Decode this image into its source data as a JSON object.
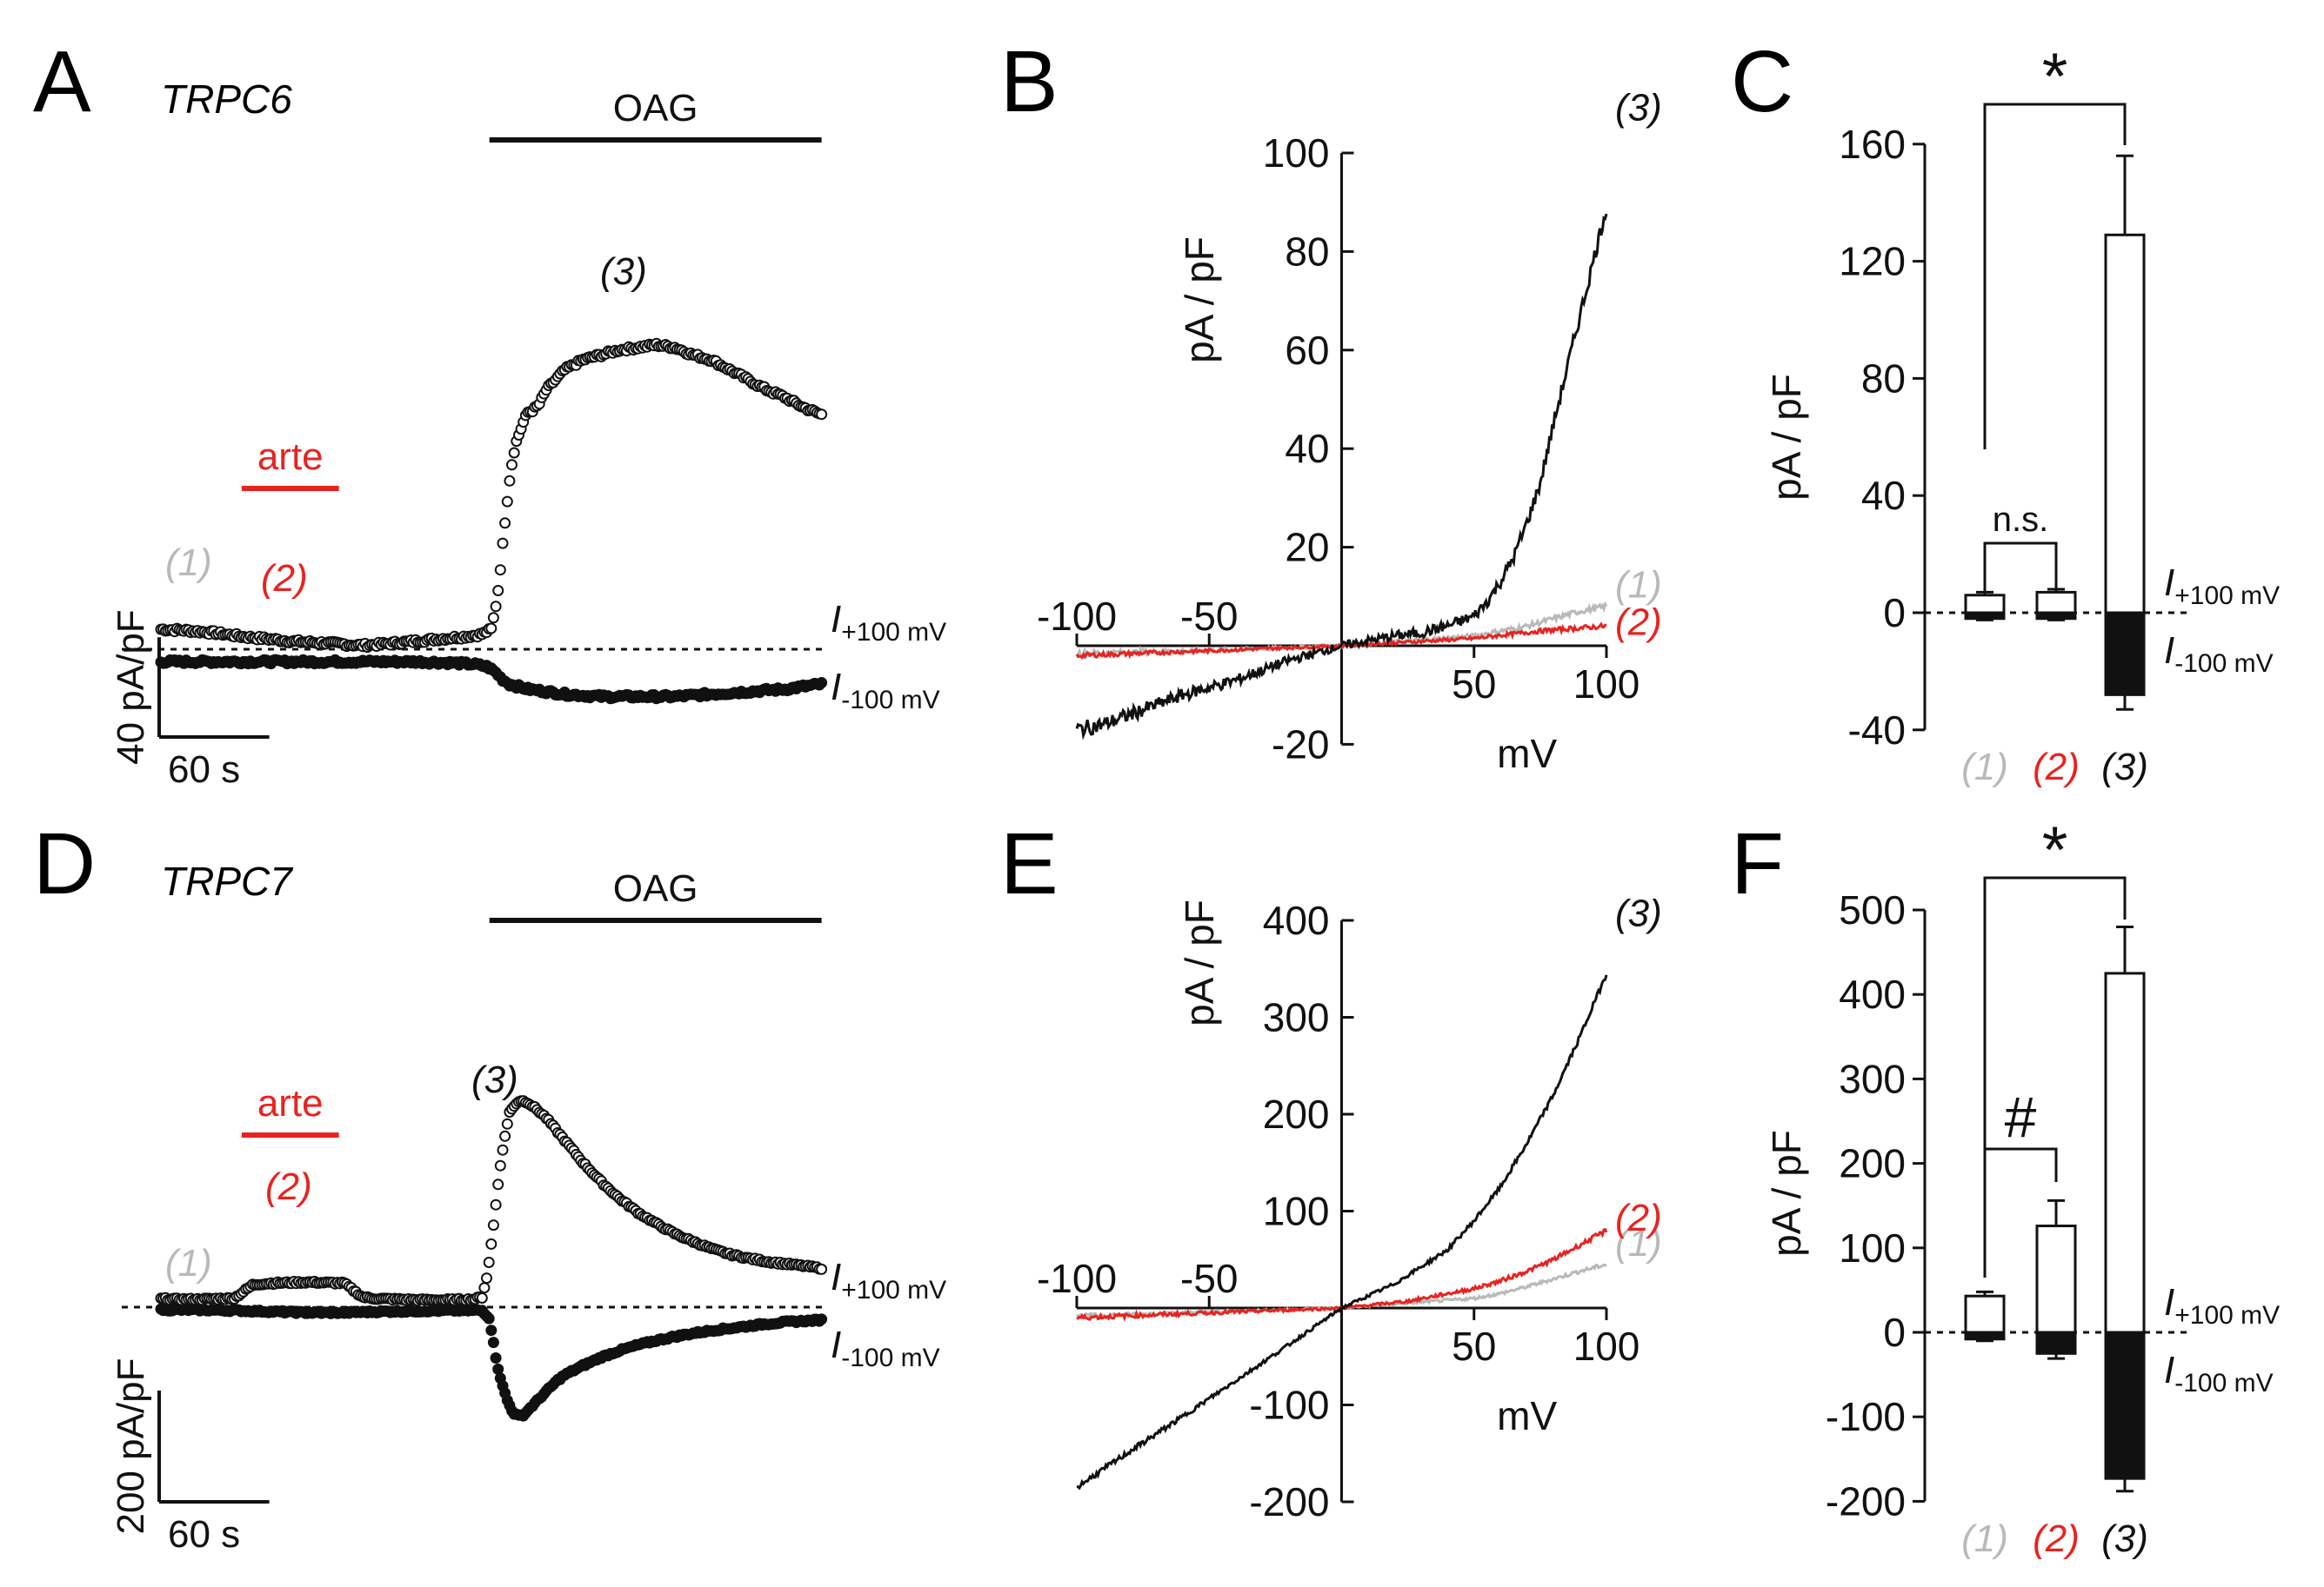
{
  "figure": {
    "colors": {
      "black": "#111111",
      "red": "#e8231f",
      "grey": "#b9b9b9"
    },
    "condition_labels": [
      "(1)",
      "(2)",
      "(3)"
    ]
  },
  "chart_data": [
    {
      "panel": "A",
      "type": "line",
      "title": "TRPC6",
      "treatments": [
        {
          "label": "OAG",
          "color": "#111111",
          "t_start": 179,
          "t_end": 360
        },
        {
          "label": "arte",
          "color": "#e8231f",
          "t_start": 44,
          "t_end": 97
        }
      ],
      "scale_bar": {
        "y_label": "40 pA/pF",
        "x_label": "60 s",
        "y_value": 40,
        "x_value": 60
      },
      "series": [
        {
          "name": "I+100 mV",
          "label_main": "I",
          "label_sub": "+100 mV",
          "marker": "open-circle",
          "color": "#111111",
          "t": [
            0,
            15,
            30,
            45,
            60,
            75,
            90,
            100,
            110,
            120,
            135,
            150,
            165,
            175,
            180,
            182,
            184,
            186,
            188,
            190,
            192,
            194,
            196,
            198,
            200,
            203,
            206,
            210,
            215,
            220,
            230,
            240,
            250,
            260,
            270,
            280,
            290,
            300,
            310,
            320,
            330,
            340,
            350,
            360
          ],
          "y": [
            8,
            7.5,
            6.5,
            5,
            4,
            3,
            2.5,
            2,
            1.5,
            2,
            3,
            4,
            5,
            6,
            8,
            15,
            25,
            40,
            55,
            68,
            78,
            84,
            88,
            92,
            95,
            96,
            98,
            104,
            108,
            112,
            116,
            118,
            120,
            121,
            122,
            121,
            118,
            116,
            112,
            108,
            104,
            101,
            97,
            94
          ]
        },
        {
          "name": "I-100 mV",
          "label_main": "I",
          "label_sub": "-100 mV",
          "marker": "filled-circle",
          "color": "#111111",
          "t": [
            0,
            20,
            40,
            60,
            80,
            100,
            120,
            140,
            160,
            170,
            178,
            182,
            186,
            190,
            195,
            200,
            210,
            220,
            230,
            240,
            250,
            260,
            270,
            280,
            290,
            300,
            310,
            320,
            330,
            340,
            350,
            360
          ],
          "y": [
            -5,
            -5,
            -5,
            -5,
            -5,
            -5,
            -5,
            -5,
            -5.5,
            -6,
            -7,
            -9,
            -12,
            -14,
            -15,
            -16,
            -17,
            -18,
            -18.5,
            -19,
            -19,
            -19,
            -19,
            -19,
            -18.5,
            -18,
            -17.5,
            -17,
            -16.5,
            -16,
            -15,
            -14
          ]
        }
      ],
      "annotations": [
        {
          "text": "(1)",
          "color": "#b9b9b9"
        },
        {
          "text": "(2)",
          "color": "#e8231f"
        },
        {
          "text": "(3)",
          "color": "#111111"
        }
      ]
    },
    {
      "panel": "B",
      "type": "line",
      "ylabel": "pA / pF",
      "xlabel": "mV",
      "xlim": [
        -100,
        100
      ],
      "ylim": [
        -20,
        100
      ],
      "x_ticks": [
        -100,
        -50,
        50,
        100
      ],
      "y_ticks": [
        -20,
        20,
        40,
        60,
        80,
        100
      ],
      "series": [
        {
          "name": "(1)",
          "color": "#b9b9b9",
          "x": [
            -100,
            -50,
            0,
            25,
            50,
            60,
            70,
            80,
            90,
            100
          ],
          "y": [
            -1.5,
            -1,
            0,
            1,
            2,
            3,
            4,
            5.5,
            7,
            8
          ]
        },
        {
          "name": "(2)",
          "color": "#e8231f",
          "x": [
            -100,
            -50,
            0,
            50,
            75,
            100
          ],
          "y": [
            -2,
            -1,
            0,
            1.5,
            3,
            4
          ]
        },
        {
          "name": "(3)",
          "color": "#111111",
          "x": [
            -100,
            -90,
            -80,
            -70,
            -60,
            -50,
            -40,
            -30,
            -20,
            -10,
            0,
            10,
            20,
            30,
            40,
            50,
            55,
            60,
            65,
            70,
            75,
            80,
            85,
            90,
            95,
            100
          ],
          "y": [
            -17,
            -16,
            -14,
            -12,
            -10,
            -8.5,
            -7,
            -5,
            -3,
            -1.5,
            0,
            1,
            2,
            2.6,
            4,
            6,
            9,
            13,
            18,
            25,
            33,
            45,
            56,
            67,
            78,
            89
          ]
        }
      ]
    },
    {
      "panel": "C",
      "type": "bar",
      "ylabel": "pA / pF",
      "ylim": [
        -40,
        160
      ],
      "y_ticks": [
        -40,
        0,
        40,
        80,
        120,
        160
      ],
      "categories": [
        "(1)",
        "(2)",
        "(3)"
      ],
      "category_colors": [
        "#b9b9b9",
        "#e8231f",
        "#111111"
      ],
      "series": [
        {
          "name": "I+100 mV",
          "label_main": "I",
          "label_sub": "+100 mV",
          "fill": "white",
          "values": [
            6,
            7,
            129
          ],
          "errors": [
            1,
            1,
            27
          ]
        },
        {
          "name": "I-100 mV",
          "label_main": "I",
          "label_sub": "-100 mV",
          "fill": "black",
          "values": [
            -2,
            -2,
            -28
          ],
          "errors": [
            0.5,
            0.5,
            5
          ]
        }
      ],
      "significance": [
        {
          "between": [
            "(1)",
            "(3)"
          ],
          "label": "*"
        },
        {
          "between": [
            "(1)",
            "(2)"
          ],
          "label": "n.s."
        }
      ]
    },
    {
      "panel": "D",
      "type": "line",
      "title": "TRPC7",
      "treatments": [
        {
          "label": "OAG",
          "color": "#111111",
          "t_start": 179,
          "t_end": 360
        },
        {
          "label": "arte",
          "color": "#e8231f",
          "t_start": 44,
          "t_end": 97
        }
      ],
      "scale_bar": {
        "y_label": "200 pA/pF",
        "x_label": "60 s",
        "y_value": 200,
        "x_value": 60
      },
      "series": [
        {
          "name": "I+100 mV",
          "label_main": "I",
          "label_sub": "+100 mV",
          "marker": "open-circle",
          "color": "#111111",
          "t": [
            0,
            10,
            20,
            30,
            40,
            45,
            50,
            55,
            60,
            70,
            80,
            90,
            100,
            105,
            110,
            115,
            120,
            130,
            140,
            150,
            160,
            170,
            175,
            178,
            181,
            184,
            187,
            190,
            193,
            196,
            200,
            205,
            210,
            220,
            230,
            240,
            250,
            260,
            270,
            280,
            290,
            300,
            310,
            320,
            330,
            340,
            350,
            360
          ],
          "y": [
            15,
            14,
            14,
            15,
            16,
            28,
            40,
            42,
            43,
            44,
            45,
            44,
            43,
            30,
            18,
            16,
            15,
            14,
            13,
            13,
            13,
            14,
            18,
            60,
            140,
            230,
            300,
            350,
            365,
            372,
            368,
            355,
            340,
            300,
            260,
            225,
            195,
            170,
            150,
            132,
            118,
            105,
            95,
            88,
            82,
            78,
            74,
            70
          ]
        },
        {
          "name": "I-100 mV",
          "label_main": "I",
          "label_sub": "-100 mV",
          "marker": "filled-circle",
          "color": "#111111",
          "t": [
            0,
            20,
            40,
            60,
            80,
            100,
            120,
            140,
            160,
            175,
            179,
            181,
            183,
            186,
            189,
            192,
            195,
            198,
            200,
            204,
            208,
            212,
            216,
            220,
            230,
            240,
            250,
            260,
            270,
            280,
            290,
            300,
            310,
            320,
            330,
            340,
            350,
            360
          ],
          "y": [
            -5,
            -5,
            -6,
            -8,
            -10,
            -10,
            -8,
            -7,
            -6,
            -6,
            -20,
            -60,
            -100,
            -140,
            -170,
            -190,
            -196,
            -193,
            -185,
            -172,
            -158,
            -145,
            -132,
            -122,
            -105,
            -90,
            -78,
            -68,
            -60,
            -53,
            -47,
            -42,
            -38,
            -34,
            -30,
            -27,
            -25,
            -23
          ]
        }
      ],
      "annotations": [
        {
          "text": "(1)",
          "color": "#b9b9b9"
        },
        {
          "text": "(2)",
          "color": "#e8231f"
        },
        {
          "text": "(3)",
          "color": "#111111"
        }
      ]
    },
    {
      "panel": "E",
      "type": "line",
      "ylabel": "pA / pF",
      "xlabel": "mV",
      "xlim": [
        -100,
        100
      ],
      "ylim": [
        -200,
        400
      ],
      "x_ticks": [
        -100,
        -50,
        50,
        100
      ],
      "y_ticks": [
        -200,
        -100,
        100,
        200,
        300,
        400
      ],
      "series": [
        {
          "name": "(1)",
          "color": "#b9b9b9",
          "x": [
            -100,
            -50,
            0,
            25,
            50,
            60,
            70,
            80,
            90,
            100
          ],
          "y": [
            -8,
            -4,
            0,
            5,
            10,
            15,
            22,
            30,
            38,
            45
          ]
        },
        {
          "name": "(2)",
          "color": "#e8231f",
          "x": [
            -100,
            -50,
            0,
            25,
            50,
            60,
            70,
            80,
            90,
            100
          ],
          "y": [
            -10,
            -5,
            0,
            7,
            20,
            28,
            38,
            50,
            65,
            80
          ]
        },
        {
          "name": "(3)",
          "color": "#111111",
          "x": [
            -100,
            -80,
            -60,
            -40,
            -20,
            0,
            20,
            40,
            50,
            60,
            70,
            80,
            90,
            100
          ],
          "y": [
            -185,
            -148,
            -112,
            -75,
            -38,
            0,
            25,
            60,
            90,
            125,
            170,
            220,
            280,
            345
          ]
        }
      ]
    },
    {
      "panel": "F",
      "type": "bar",
      "ylabel": "pA / pF",
      "ylim": [
        -200,
        500
      ],
      "y_ticks": [
        -200,
        -100,
        0,
        100,
        200,
        300,
        400,
        500
      ],
      "categories": [
        "(1)",
        "(2)",
        "(3)"
      ],
      "category_colors": [
        "#b9b9b9",
        "#e8231f",
        "#111111"
      ],
      "series": [
        {
          "name": "I+100 mV",
          "label_main": "I",
          "label_sub": "+100 mV",
          "fill": "white",
          "values": [
            43,
            126,
            425
          ],
          "errors": [
            5,
            30,
            55
          ]
        },
        {
          "name": "I-100 mV",
          "label_main": "I",
          "label_sub": "-100 mV",
          "fill": "black",
          "values": [
            -8,
            -25,
            -173
          ],
          "errors": [
            2,
            6,
            15
          ]
        }
      ],
      "significance": [
        {
          "between": [
            "(1)",
            "(3)"
          ],
          "label": "*"
        },
        {
          "between": [
            "(1)",
            "(2)"
          ],
          "label": "#"
        }
      ]
    }
  ]
}
